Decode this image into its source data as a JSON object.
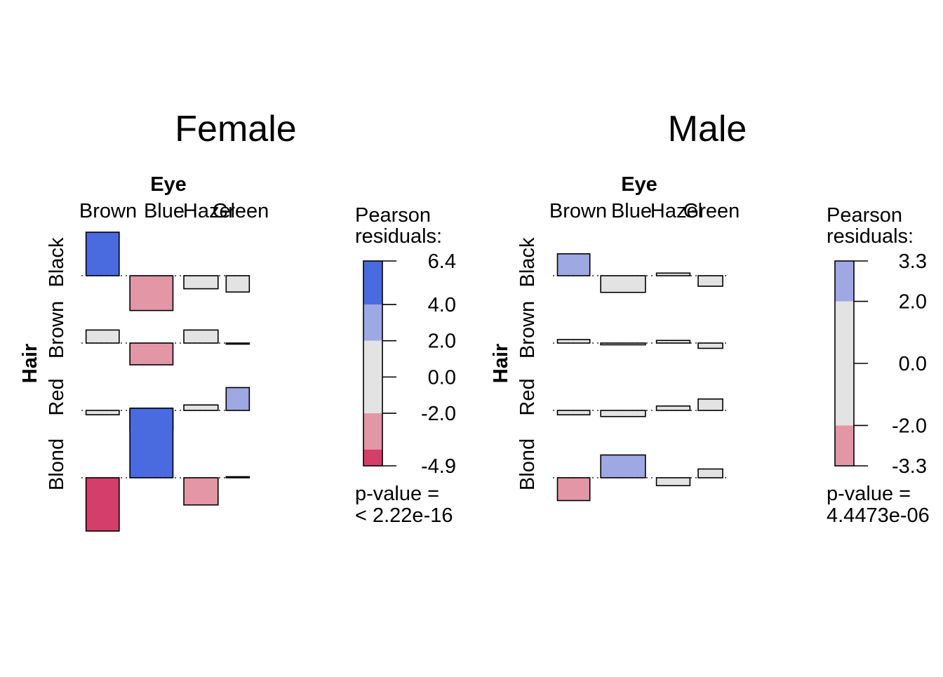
{
  "colors": {
    "strong_positive": "#4a6ae0",
    "positive": "#9ea8e2",
    "neutral": "#e3e3e3",
    "negative": "#e396a6",
    "strong_negative": "#d33f6a",
    "border": "#000000"
  },
  "chart_data": [
    {
      "type": "association_plot",
      "title": "Female",
      "col_variable": "Eye",
      "row_variable": "Hair",
      "col_levels": [
        "Brown",
        "Blue",
        "Hazel",
        "Green"
      ],
      "row_levels": [
        "Black",
        "Brown",
        "Red",
        "Blond"
      ],
      "column_widths": [
        1.5,
        1.95,
        1.55,
        1.05
      ],
      "row_heights_pos": [
        1.0,
        0.5,
        0.6,
        0.0
      ],
      "row_heights_neg": [
        0.7,
        0.9,
        0.6,
        1.5
      ],
      "residuals": [
        [
          4.0,
          -3.2,
          -1.2,
          -1.5
        ],
        [
          1.2,
          -2.0,
          1.2,
          -0.1
        ],
        [
          -0.4,
          -1.8,
          0.5,
          2.1
        ],
        [
          -4.9,
          6.4,
          -2.5,
          0.0
        ]
      ],
      "legend": {
        "title": "Pearson\nresiduals:",
        "title_lines": [
          "Pearson",
          "residuals:"
        ],
        "min": -4.9,
        "max": 6.4,
        "ticks": [
          6.4,
          4.0,
          2.0,
          0.0,
          -2.0,
          -4.9
        ],
        "tick_labels": [
          "6.4",
          "4.0",
          "2.0",
          "0.0",
          "-2.0",
          "-4.9"
        ],
        "p_value_label": "p-value =",
        "p_value": "< 2.22e-16"
      }
    },
    {
      "type": "association_plot",
      "title": "Male",
      "col_variable": "Eye",
      "row_variable": "Hair",
      "col_levels": [
        "Brown",
        "Blue",
        "Hazel",
        "Green"
      ],
      "row_levels": [
        "Black",
        "Brown",
        "Red",
        "Blond"
      ],
      "column_widths": [
        1.45,
        2.0,
        1.5,
        1.1
      ],
      "row_heights_pos": [
        0.8,
        0.5,
        0.6,
        0.9
      ],
      "row_heights_neg": [
        0.5,
        0.4,
        0.5,
        0.9
      ],
      "residuals": [
        [
          2.5,
          -1.9,
          0.3,
          -1.2
        ],
        [
          0.4,
          -0.2,
          0.3,
          -0.6
        ],
        [
          -0.5,
          -0.7,
          0.5,
          1.3
        ],
        [
          -2.6,
          2.6,
          -0.9,
          1.0
        ]
      ],
      "legend": {
        "title": "Pearson\nresiduals:",
        "title_lines": [
          "Pearson",
          "residuals:"
        ],
        "min": -3.3,
        "max": 3.3,
        "ticks": [
          3.3,
          2.0,
          0.0,
          -2.0,
          -3.3
        ],
        "tick_labels": [
          "3.3",
          "2.0",
          "0.0",
          "-2.0",
          "-3.3"
        ],
        "p_value_label": "p-value =",
        "p_value": "4.4473e-06"
      }
    }
  ]
}
